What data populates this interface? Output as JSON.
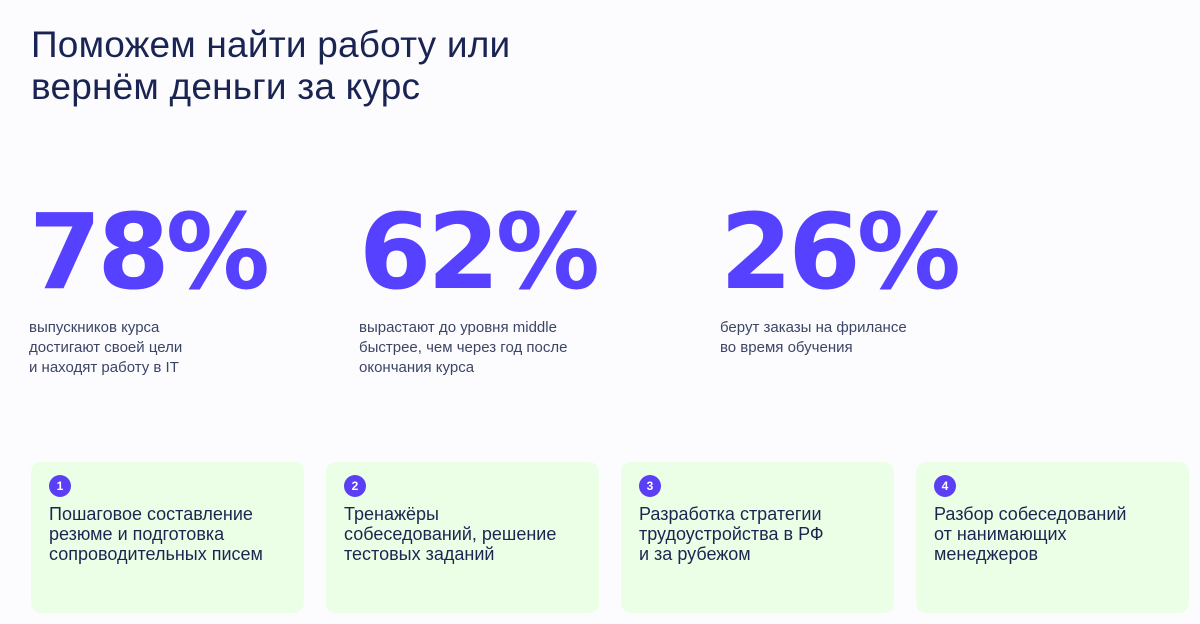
{
  "headline": {
    "lines": [
      "Поможем найти работу или",
      "вернём деньги за курс"
    ]
  },
  "colors": {
    "accent": "#5541ff",
    "badge": "#5a3ff5",
    "card_background": "#ebffe6",
    "heading_text": "#1a2452",
    "caption_text": "#3d4566",
    "page_background": "#fcfcfe"
  },
  "stats": [
    {
      "value": "78%",
      "caption_lines": [
        "выпускников курса",
        "достигают своей цели",
        "и находят работу в IT"
      ]
    },
    {
      "value": "62%",
      "caption_lines": [
        "вырастают до уровня middle",
        "быстрее, чем через год после",
        "окончания курса"
      ]
    },
    {
      "value": "26%",
      "caption_lines": [
        "берут заказы на фрилансе",
        "во время обучения"
      ]
    }
  ],
  "cards": [
    {
      "number": "1",
      "lines": [
        "Пошаговое составление",
        "резюме и подготовка",
        "сопроводительных писем"
      ]
    },
    {
      "number": "2",
      "lines": [
        "Тренажёры",
        "собеседований, решение",
        "тестовых заданий"
      ]
    },
    {
      "number": "3",
      "lines": [
        "Разработка стратегии",
        "трудоустройства в РФ",
        "и за рубежом"
      ]
    },
    {
      "number": "4",
      "lines": [
        "Разбор собеседований",
        "от нанимающих",
        "менеджеров"
      ]
    }
  ]
}
